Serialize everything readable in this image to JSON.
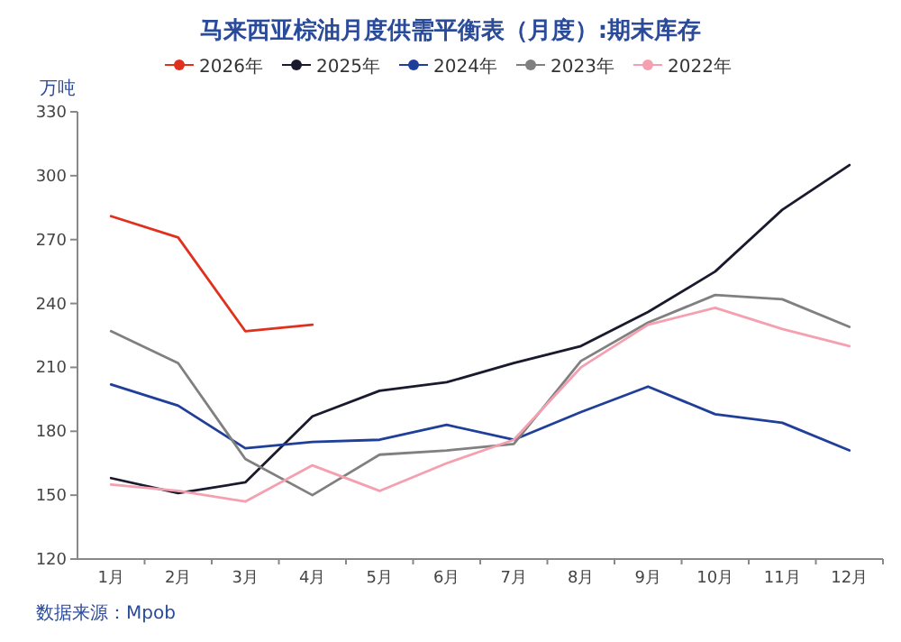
{
  "chart_data": {
    "type": "line",
    "title": "马来西亚棕油月度供需平衡表（月度）:期末库存",
    "ylabel": "万吨",
    "categories": [
      "1月",
      "2月",
      "3月",
      "4月",
      "5月",
      "6月",
      "7月",
      "8月",
      "9月",
      "10月",
      "11月",
      "12月"
    ],
    "series": [
      {
        "name": "2026年",
        "color": "#e0301e",
        "values": [
          281,
          271,
          227,
          230,
          null,
          null,
          null,
          null,
          null,
          null,
          null,
          null
        ]
      },
      {
        "name": "2025年",
        "color": "#1a1a2e",
        "values": [
          158,
          151,
          156,
          187,
          199,
          203,
          212,
          220,
          236,
          255,
          284,
          305
        ]
      },
      {
        "name": "2024年",
        "color": "#1f3f99",
        "values": [
          202,
          192,
          172,
          175,
          176,
          183,
          176,
          189,
          201,
          188,
          184,
          171
        ]
      },
      {
        "name": "2023年",
        "color": "#808080",
        "values": [
          227,
          212,
          167,
          150,
          169,
          171,
          174,
          213,
          231,
          244,
          242,
          229
        ]
      },
      {
        "name": "2022年",
        "color": "#f4a0b0",
        "values": [
          155,
          152,
          147,
          164,
          152,
          165,
          176,
          210,
          230,
          238,
          228,
          220
        ]
      }
    ],
    "ylim": [
      120,
      330
    ],
    "yticks": [
      120,
      150,
      180,
      210,
      240,
      270,
      300,
      330
    ],
    "grid": false,
    "legend": "top",
    "marker": "none",
    "line_style": "solid",
    "annotations": [
      "数据来源：Mpob"
    ]
  }
}
